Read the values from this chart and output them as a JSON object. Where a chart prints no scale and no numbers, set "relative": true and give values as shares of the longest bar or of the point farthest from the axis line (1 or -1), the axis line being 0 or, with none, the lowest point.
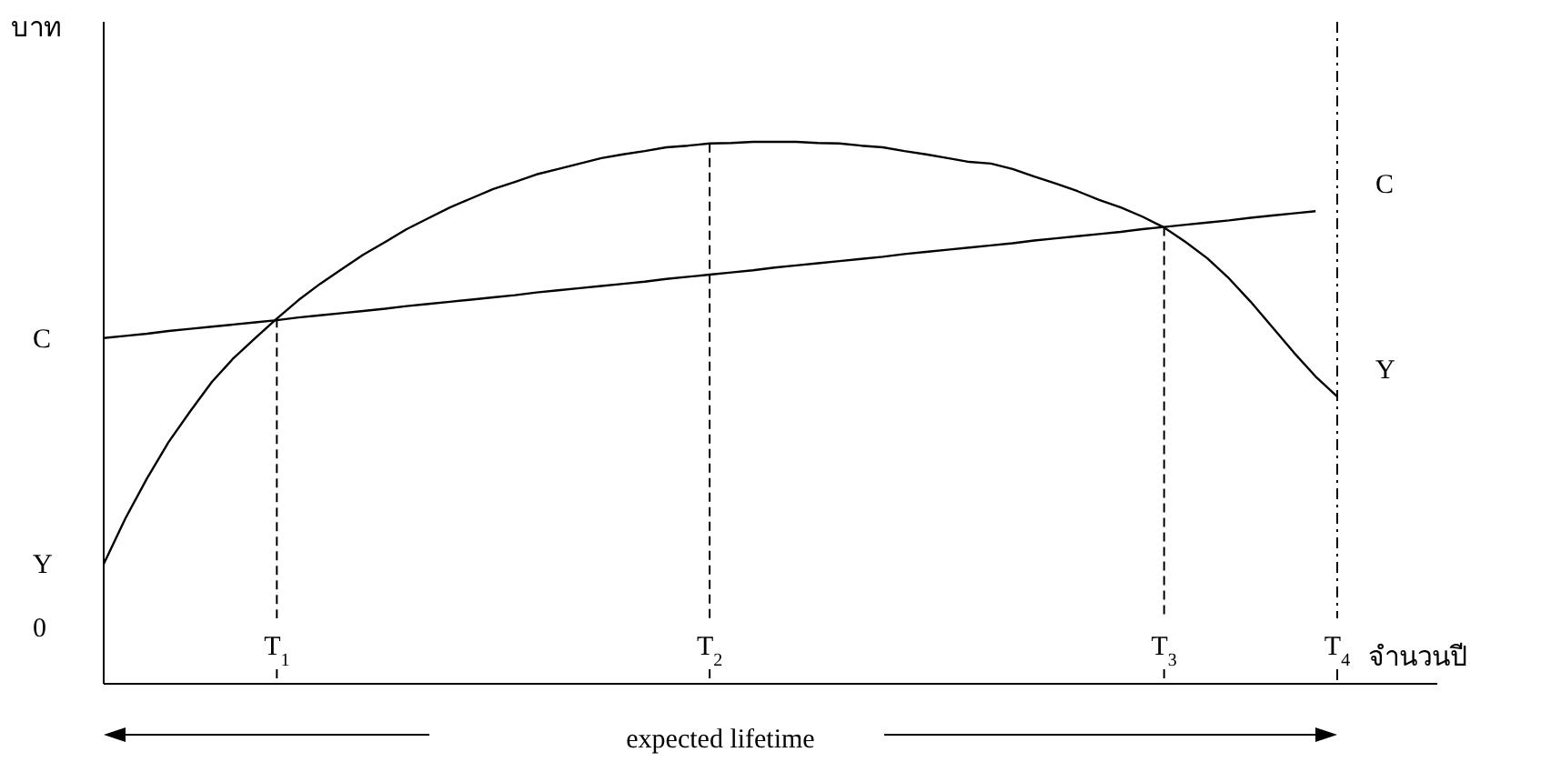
{
  "chart_data": {
    "type": "line",
    "relative": true,
    "legend": false,
    "xlabel": "จำนวนปี",
    "ylabel": "บาท",
    "categories": [
      null,
      null,
      null,
      null,
      null,
      null,
      null,
      null,
      "T$_{1}$",
      null,
      null,
      null,
      null,
      null,
      null,
      null,
      null,
      null,
      null,
      null,
      null,
      null,
      null,
      null,
      null,
      null,
      null,
      null,
      "T$_{2}$",
      null,
      null,
      null,
      null,
      null,
      null,
      null,
      null,
      null,
      null,
      null,
      null,
      null,
      null,
      null,
      null,
      null,
      null,
      null,
      null,
      "T$_{3}$",
      null,
      null,
      null,
      null,
      null,
      null,
      null,
      "T$_{4}$"
    ],
    "series": [
      {
        "name": "Y",
        "color": "#000000",
        "values": [
          0.221,
          0.305,
          0.379,
          0.446,
          0.503,
          0.557,
          0.601,
          0.638,
          0.674,
          0.708,
          0.738,
          0.765,
          0.792,
          0.815,
          0.839,
          0.859,
          0.879,
          0.896,
          0.913,
          0.926,
          0.94,
          0.95,
          0.96,
          0.97,
          0.977,
          0.983,
          0.99,
          0.993,
          0.997,
          0.998,
          1.0,
          1.0,
          1.0,
          0.998,
          0.997,
          0.993,
          0.99,
          0.983,
          0.977,
          0.97,
          0.963,
          0.96,
          0.95,
          0.936,
          0.923,
          0.909,
          0.893,
          0.879,
          0.862,
          0.842,
          0.815,
          0.785,
          0.748,
          0.705,
          0.658,
          0.611,
          0.567,
          0.53
        ]
      },
      {
        "name": "C",
        "color": "#000000",
        "values": [
          0.638,
          0.642,
          0.646,
          0.651,
          0.655,
          0.659,
          0.663,
          0.667,
          0.671,
          0.676,
          0.68,
          0.684,
          0.688,
          0.692,
          0.697,
          0.701,
          0.705,
          0.709,
          0.713,
          0.717,
          0.722,
          0.726,
          0.73,
          0.734,
          0.738,
          0.742,
          0.747,
          0.751,
          0.755,
          0.759,
          0.763,
          0.768,
          0.772,
          0.776,
          0.78,
          0.784,
          0.788,
          0.793,
          0.797,
          0.801,
          0.805,
          0.809,
          0.813,
          0.818,
          0.822,
          0.826,
          0.83,
          0.834,
          0.839,
          0.843,
          0.847,
          0.851,
          0.855,
          0.86,
          0.864,
          0.868,
          0.872,
          null
        ]
      }
    ],
    "ref_lines": [
      {
        "axis": "x",
        "value": "T$_{1}$",
        "line_style": "dashed"
      },
      {
        "axis": "x",
        "value": "T$_{2}$",
        "line_style": "dashed"
      },
      {
        "axis": "x",
        "value": "T$_{3}$",
        "line_style": "dashed"
      },
      {
        "axis": "x",
        "value": "T$_{4}$",
        "line_style": "dotted"
      }
    ],
    "annotations": [
      "0",
      "expected lifetime"
    ]
  }
}
